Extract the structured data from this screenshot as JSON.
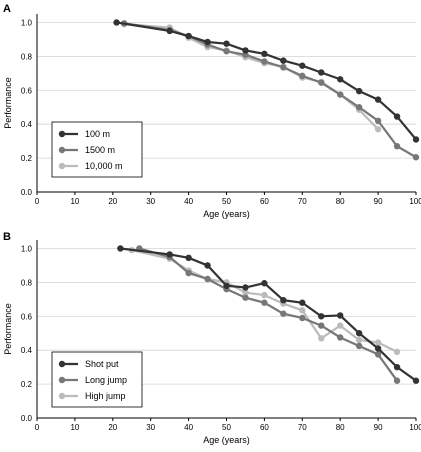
{
  "chart_data": [
    {
      "panel": "A",
      "type": "line",
      "xlabel": "Age (years)",
      "ylabel": "Performance",
      "xlim": [
        0,
        100
      ],
      "ylim": [
        0,
        1.05
      ],
      "xticks": [
        "0",
        "10",
        "20",
        "30",
        "40",
        "50",
        "60",
        "70",
        "80",
        "90",
        "100"
      ],
      "yticks": [
        "0.0",
        "0.2",
        "0.4",
        "0.6",
        "0.8",
        "1.0"
      ],
      "grid": "horizontal",
      "legend_position": "bottom-left",
      "series": [
        {
          "name": "100 m",
          "color": "#333333",
          "x": [
            21,
            35,
            40,
            45,
            50,
            55,
            60,
            65,
            70,
            75,
            80,
            85,
            90,
            95,
            100
          ],
          "y": [
            1.0,
            0.95,
            0.92,
            0.885,
            0.875,
            0.835,
            0.815,
            0.775,
            0.745,
            0.705,
            0.665,
            0.595,
            0.545,
            0.445,
            0.31
          ]
        },
        {
          "name": "1500 m",
          "color": "#777777",
          "x": [
            23,
            35,
            40,
            45,
            50,
            55,
            60,
            65,
            70,
            75,
            80,
            85,
            90,
            95,
            100
          ],
          "y": [
            0.995,
            0.955,
            0.92,
            0.87,
            0.83,
            0.81,
            0.77,
            0.735,
            0.685,
            0.645,
            0.575,
            0.5,
            0.42,
            0.27,
            0.205
          ]
        },
        {
          "name": "10,000 m",
          "color": "#bbbbbb",
          "x": [
            23,
            35,
            40,
            45,
            50,
            55,
            60,
            65,
            70,
            75,
            80,
            85,
            90
          ],
          "y": [
            0.99,
            0.97,
            0.91,
            0.855,
            0.835,
            0.795,
            0.76,
            0.74,
            0.675,
            0.65,
            0.575,
            0.485,
            0.37
          ]
        }
      ]
    },
    {
      "panel": "B",
      "type": "line",
      "xlabel": "Age (years)",
      "ylabel": "Performance",
      "xlim": [
        0,
        100
      ],
      "ylim": [
        0,
        1.05
      ],
      "xticks": [
        "0",
        "10",
        "20",
        "30",
        "40",
        "50",
        "60",
        "70",
        "80",
        "90",
        "100"
      ],
      "yticks": [
        "0.0",
        "0.2",
        "0.4",
        "0.6",
        "0.8",
        "1.0"
      ],
      "grid": "horizontal",
      "legend_position": "bottom-left",
      "series": [
        {
          "name": "Shot put",
          "color": "#333333",
          "x": [
            22,
            35,
            40,
            45,
            50,
            55,
            60,
            65,
            70,
            75,
            80,
            85,
            90,
            95,
            100
          ],
          "y": [
            1.0,
            0.965,
            0.945,
            0.9,
            0.78,
            0.77,
            0.795,
            0.695,
            0.68,
            0.6,
            0.605,
            0.5,
            0.41,
            0.3,
            0.22
          ]
        },
        {
          "name": "Long jump",
          "color": "#777777",
          "x": [
            27,
            35,
            40,
            45,
            50,
            55,
            60,
            65,
            70,
            75,
            80,
            85,
            90,
            95
          ],
          "y": [
            1.0,
            0.95,
            0.855,
            0.82,
            0.76,
            0.71,
            0.68,
            0.615,
            0.59,
            0.545,
            0.475,
            0.425,
            0.375,
            0.22
          ]
        },
        {
          "name": "High jump",
          "color": "#bbbbbb",
          "x": [
            25,
            35,
            40,
            45,
            50,
            55,
            60,
            65,
            70,
            75,
            80,
            85,
            90,
            95
          ],
          "y": [
            0.99,
            0.94,
            0.87,
            0.82,
            0.8,
            0.74,
            0.725,
            0.675,
            0.635,
            0.47,
            0.545,
            0.46,
            0.445,
            0.39
          ]
        }
      ]
    }
  ]
}
